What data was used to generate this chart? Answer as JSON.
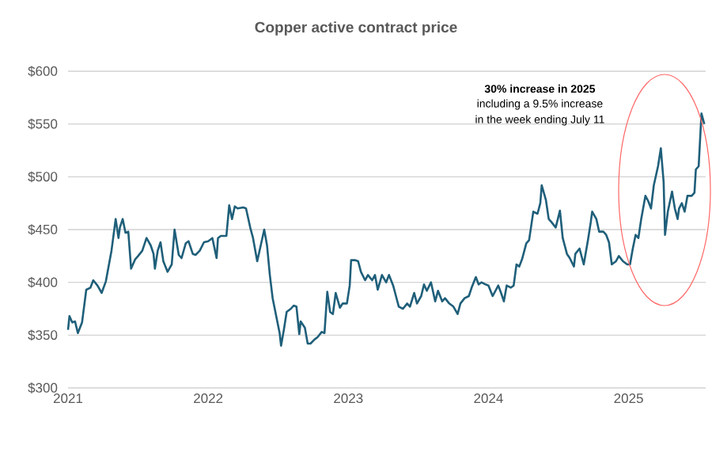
{
  "chart_data": {
    "type": "line",
    "title": "Copper active contract price",
    "color": "#1f5f7a",
    "grid": "y",
    "annotations": [
      "30% increase in 2025",
      "including a 9.5% increase",
      "in the week ending July 11"
    ],
    "xlim": [
      2021,
      2025.55
    ],
    "xticks": [
      2021,
      2022,
      2023,
      2024,
      2025
    ],
    "ylim": [
      300,
      600
    ],
    "yticks": [
      {
        "value": 300,
        "label": "$300"
      },
      {
        "value": 350,
        "label": "$350"
      },
      {
        "value": 400,
        "label": "$400"
      },
      {
        "value": 450,
        "label": "$450"
      },
      {
        "value": 500,
        "label": "$500"
      },
      {
        "value": 550,
        "label": "$550"
      },
      {
        "value": 600,
        "label": "$600"
      }
    ],
    "x": [
      2021.0,
      2021.01,
      2021.03,
      2021.05,
      2021.07,
      2021.1,
      2021.13,
      2021.16,
      2021.18,
      2021.21,
      2021.24,
      2021.27,
      2021.31,
      2021.34,
      2021.36,
      2021.37,
      2021.39,
      2021.41,
      2021.43,
      2021.45,
      2021.48,
      2021.5,
      2021.53,
      2021.56,
      2021.59,
      2021.61,
      2021.62,
      2021.64,
      2021.66,
      2021.68,
      2021.71,
      2021.74,
      2021.76,
      2021.79,
      2021.81,
      2021.84,
      2021.86,
      2021.89,
      2021.91,
      2021.94,
      2021.97,
      2022.0,
      2022.03,
      2022.06,
      2022.07,
      2022.09,
      2022.13,
      2022.15,
      2022.17,
      2022.19,
      2022.21,
      2022.25,
      2022.27,
      2022.3,
      2022.32,
      2022.35,
      2022.37,
      2022.4,
      2022.42,
      2022.44,
      2022.46,
      2022.49,
      2022.51,
      2022.52,
      2022.54,
      2022.56,
      2022.59,
      2022.61,
      2022.63,
      2022.65,
      2022.66,
      2022.69,
      2022.71,
      2022.73,
      2022.76,
      2022.78,
      2022.81,
      2022.83,
      2022.85,
      2022.87,
      2022.89,
      2022.91,
      2022.94,
      2022.96,
      2022.99,
      2023.01,
      2023.02,
      2023.05,
      2023.07,
      2023.09,
      2023.12,
      2023.14,
      2023.17,
      2023.19,
      2023.21,
      2023.24,
      2023.27,
      2023.29,
      2023.32,
      2023.34,
      2023.36,
      2023.39,
      2023.42,
      2023.44,
      2023.47,
      2023.49,
      2023.52,
      2023.54,
      2023.56,
      2023.59,
      2023.62,
      2023.64,
      2023.67,
      2023.69,
      2023.72,
      2023.75,
      2023.78,
      2023.8,
      2023.83,
      2023.86,
      2023.88,
      2023.91,
      2023.93,
      2023.95,
      2023.98,
      2024.0,
      2024.03,
      2024.05,
      2024.07,
      2024.09,
      2024.11,
      2024.13,
      2024.16,
      2024.18,
      2024.2,
      2024.22,
      2024.24,
      2024.27,
      2024.29,
      2024.32,
      2024.35,
      2024.37,
      2024.38,
      2024.41,
      2024.43,
      2024.45,
      2024.48,
      2024.51,
      2024.53,
      2024.56,
      2024.58,
      2024.61,
      2024.62,
      2024.65,
      2024.68,
      2024.71,
      2024.73,
      2024.74,
      2024.77,
      2024.79,
      2024.82,
      2024.84,
      2024.86,
      2024.88,
      2024.91,
      2024.93,
      2024.96,
      2024.99,
      2025.01,
      2025.03,
      2025.05,
      2025.07,
      2025.09,
      2025.12,
      2025.14,
      2025.16,
      2025.18,
      2025.21,
      2025.23,
      2025.25,
      2025.26,
      2025.28,
      2025.31,
      2025.33,
      2025.35,
      2025.36,
      2025.38,
      2025.4,
      2025.42,
      2025.45,
      2025.47,
      2025.48,
      2025.5,
      2025.52,
      2025.54
    ],
    "values": [
      355,
      368,
      362,
      363,
      352,
      362,
      393,
      395,
      402,
      397,
      390,
      401,
      430,
      460,
      442,
      452,
      460,
      447,
      448,
      413,
      422,
      425,
      430,
      442,
      435,
      427,
      413,
      430,
      438,
      420,
      410,
      417,
      450,
      426,
      423,
      437,
      439,
      427,
      426,
      430,
      438,
      439,
      442,
      423,
      442,
      444,
      444,
      473,
      460,
      472,
      470,
      471,
      470,
      452,
      442,
      420,
      432,
      450,
      435,
      407,
      385,
      365,
      352,
      340,
      355,
      372,
      375,
      378,
      377,
      351,
      363,
      357,
      342,
      342,
      346,
      348,
      353,
      352,
      391,
      372,
      370,
      390,
      376,
      380,
      380,
      397,
      421,
      421,
      420,
      410,
      402,
      407,
      402,
      407,
      393,
      407,
      400,
      407,
      397,
      387,
      377,
      375,
      380,
      377,
      390,
      380,
      387,
      398,
      392,
      400,
      382,
      392,
      382,
      385,
      380,
      377,
      370,
      380,
      385,
      387,
      395,
      405,
      398,
      400,
      398,
      397,
      387,
      392,
      397,
      390,
      382,
      397,
      395,
      397,
      417,
      415,
      422,
      437,
      440,
      467,
      465,
      475,
      492,
      478,
      460,
      457,
      452,
      468,
      442,
      427,
      423,
      415,
      427,
      432,
      417,
      440,
      457,
      467,
      460,
      448,
      448,
      445,
      438,
      417,
      420,
      425,
      420,
      417,
      417,
      432,
      445,
      442,
      460,
      482,
      477,
      470,
      492,
      510,
      527,
      495,
      445,
      467,
      486,
      470,
      460,
      470,
      475,
      467,
      482,
      482,
      485,
      507,
      510,
      560,
      550
    ]
  }
}
